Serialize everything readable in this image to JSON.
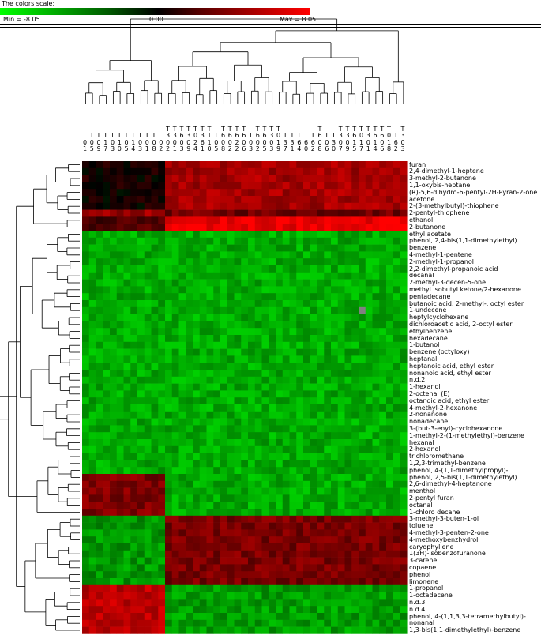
{
  "scale": {
    "title": "The colors scale:",
    "min_label": "Min = -8.05",
    "zero_label": "0.00",
    "max_label": "Max = 8.05",
    "min": -8.05,
    "max": 8.05,
    "low_color": "#00ff00",
    "mid_color": "#000000",
    "high_color": "#ff0000"
  },
  "chart_data": {
    "type": "heatmap",
    "columns": [
      [
        "T",
        "0",
        "1"
      ],
      [
        "T",
        "0",
        "5"
      ],
      [
        "T",
        "0",
        "9"
      ],
      [
        "T",
        "1",
        "7"
      ],
      [
        "T",
        "0",
        "3"
      ],
      [
        "T",
        "1",
        "0"
      ],
      [
        "T",
        "0",
        "5"
      ],
      [
        "T",
        "1",
        "4"
      ],
      [
        "T",
        "0",
        "3"
      ],
      [
        "T",
        "0",
        "1"
      ],
      [
        "T",
        "0",
        "8"
      ],
      [
        "0",
        "2"
      ],
      [
        "T",
        "3",
        "0",
        "2"
      ],
      [
        "T",
        "3",
        "0",
        "1"
      ],
      [
        "T",
        "6",
        "0",
        "3"
      ],
      [
        "T",
        "3",
        "0",
        "9"
      ],
      [
        "T",
        "0",
        "2",
        "4"
      ],
      [
        "T",
        "3",
        "6",
        "1"
      ],
      [
        "T",
        "1",
        "1",
        "0"
      ],
      [
        "T",
        "0",
        "5"
      ],
      [
        "T",
        "6",
        "0",
        "8"
      ],
      [
        "T",
        "6",
        "0",
        "2"
      ],
      [
        "T",
        "6",
        "2",
        "2"
      ],
      [
        "T",
        "6",
        "0",
        "6"
      ],
      [
        "T",
        "0",
        "3"
      ],
      [
        "T",
        "6",
        "0",
        "2"
      ],
      [
        "T",
        "6",
        "0",
        "5"
      ],
      [
        "T",
        "3",
        "0",
        "3"
      ],
      [
        "T",
        "0",
        "1",
        "9"
      ],
      [
        "T",
        "3",
        "7"
      ],
      [
        "T",
        "3",
        "1"
      ],
      [
        "T",
        "6",
        "4"
      ],
      [
        "T",
        "6",
        "0"
      ],
      [
        "T",
        "6",
        "2"
      ],
      [
        "T",
        "6",
        "0",
        "8"
      ],
      [
        "T",
        "0",
        "6"
      ],
      [
        "T",
        "3",
        "0"
      ],
      [
        "T",
        "3",
        "0",
        "7"
      ],
      [
        "T",
        "3",
        "0",
        "9"
      ],
      [
        "T",
        "6",
        "1",
        "5"
      ],
      [
        "T",
        "0",
        "1",
        "7"
      ],
      [
        "T",
        "3",
        "0",
        "1"
      ],
      [
        "T",
        "6",
        "1",
        "4"
      ],
      [
        "T",
        "6",
        "0",
        "6"
      ],
      [
        "T",
        "0",
        "1",
        "8"
      ],
      [
        "T",
        "6",
        "2"
      ],
      [
        "T",
        "3",
        "0",
        "3"
      ]
    ],
    "rows": [
      "furan",
      "2,4-dimethyl-1-heptene",
      "3-methyl-2-butanone",
      "1,1-oxybis-heptane",
      "(R)-5,6-dihydro-6-pentyl-2H-Pyran-2-one",
      "acetone",
      "2-(3-methylbutyl)-thiophene",
      "2-pentyl-thiophene",
      "ethanol",
      "2-butanone",
      "ethyl acetate",
      "phenol, 2,4-bis(1,1-dimethylethyl)",
      "benzene",
      "4-methyl-1-pentene",
      "2-methyl-1-propanol",
      "2,2-dimethyl-propanoic acid",
      "decanal",
      "2-methyl-3-decen-5-one",
      "methyl isobutyl ketone/2-hexanone",
      "pentadecane",
      "butanoic acid, 2-methyl-, octyl ester",
      "1-undecene",
      "heptylcyclohexane",
      "dichloroacetic acid, 2-octyl ester",
      "ethylbenzene",
      "hexadecane",
      "1-butanol",
      "benzene (octyloxy)",
      "heptanal",
      "heptanoic acid, ethyl ester",
      "nonanoic acid, ethyl ester",
      "n.d.2",
      "1-hexanol",
      "2-octenal (E)",
      "octanoic acid, ethyl ester",
      "4-methyl-2-hexanone",
      "2-nonanone",
      "nonadecane",
      "3-(but-3-enyl)-cyclohexanone",
      "1-methyl-2-(1-methylethyl)-benzene",
      "hexanal",
      "2-hexanol",
      "trichloromethane",
      "1,2,3-trimethyl-benzene",
      "phenol, 4-(1,1-dimethylpropyl)-",
      "phenol, 2,5-bis(1,1-dimethylethyl)",
      "2,6-dimethyl-4-heptanone",
      "menthol",
      "2-pentyl furan",
      "octanal",
      "1-chloro decane",
      "3-methyl-3-buten-1-ol",
      "toluene",
      "4-methyl-3-penten-2-one",
      "4-methoxybenzhydrol",
      "caryophyllene",
      "1(3H)-isobenzofuranone",
      "3-carene",
      "copaene",
      "phenol",
      "limonene",
      "1-propanol",
      "1-octadecene",
      "n.d.3",
      "n.d.4",
      "phenol, 4-(1,1,3,3-tetramethylbutyl)-",
      "nonanal",
      "1,3-bis(1,1-dimethylethyl)-benzene"
    ],
    "group_split_column": 12,
    "blocks": [
      {
        "rows": [
          0,
          9
        ],
        "cols": [
          0,
          11
        ],
        "value": 0.5
      },
      {
        "rows": [
          0,
          6
        ],
        "cols": [
          12,
          46
        ],
        "value": 5.2
      },
      {
        "rows": [
          7,
          7
        ],
        "cols": [
          0,
          11
        ],
        "value": 4.8
      },
      {
        "rows": [
          7,
          7
        ],
        "cols": [
          12,
          46
        ],
        "value": 3.5
      },
      {
        "rows": [
          8,
          9
        ],
        "cols": [
          0,
          11
        ],
        "value": 2.5
      },
      {
        "rows": [
          8,
          9
        ],
        "cols": [
          12,
          46
        ],
        "value": 7.5
      },
      {
        "rows": [
          10,
          44
        ],
        "cols": [
          0,
          46
        ],
        "value": -5.4
      },
      {
        "rows": [
          45,
          50
        ],
        "cols": [
          0,
          11
        ],
        "value": 4.0
      },
      {
        "rows": [
          45,
          50
        ],
        "cols": [
          12,
          46
        ],
        "value": -5.4
      },
      {
        "rows": [
          51,
          60
        ],
        "cols": [
          0,
          11
        ],
        "value": -4.8
      },
      {
        "rows": [
          51,
          60
        ],
        "cols": [
          12,
          46
        ],
        "value": 3.8
      },
      {
        "rows": [
          61,
          67
        ],
        "cols": [
          0,
          11
        ],
        "value": 6.0
      },
      {
        "rows": [
          61,
          67
        ],
        "cols": [
          12,
          46
        ],
        "value": -5.0
      }
    ],
    "missing_cells": [
      [
        21,
        40
      ]
    ]
  }
}
